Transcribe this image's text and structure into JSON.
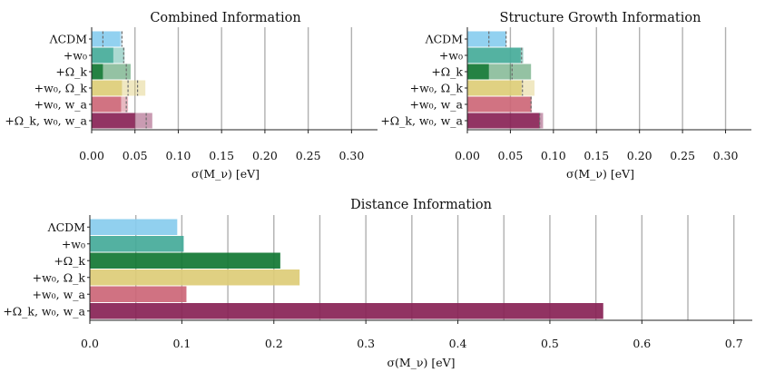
{
  "colors": {
    "blue": "#88CCEE",
    "teal": "#44AA99",
    "green": "#117733",
    "sand": "#DDCC77",
    "rose": "#CC6677",
    "wine": "#882255",
    "grid": "#b0b0b0"
  },
  "chart_data": [
    {
      "type": "bar",
      "orientation": "horizontal",
      "title": "Combined Information",
      "xlabel": "σ(M_ν) [eV]",
      "xlim": [
        0,
        0.33
      ],
      "xticks": [
        "0.00",
        "0.05",
        "0.10",
        "0.15",
        "0.20",
        "0.25",
        "0.30"
      ],
      "categories": [
        "ΛCDM",
        "+w₀",
        "+Ω_k",
        "+w₀, Ω_k",
        "+w₀, w_a",
        "+Ω_k, w₀, w_a"
      ],
      "bar_colors": [
        "#88CCEE",
        "#44AA99",
        "#117733",
        "#DDCC77",
        "#CC6677",
        "#882255"
      ],
      "series": [
        {
          "name": "",
          "style": "solid",
          "values": [
            0.033,
            0.025,
            0.013,
            0.035,
            0.034,
            0.05
          ]
        },
        {
          "name": "",
          "style": "faded",
          "values": [
            0.035,
            0.038,
            0.045,
            0.062,
            0.042,
            0.07
          ]
        },
        {
          "name": "",
          "style": "dashed-marker",
          "values": [
            0.035,
            0.037,
            0.04,
            0.053,
            0.04,
            0.063
          ]
        }
      ],
      "extra_markers": [
        {
          "category": "ΛCDM",
          "value": 0.013
        },
        {
          "category": "+w₀, Ω_k",
          "value": 0.042
        }
      ],
      "grid": "vertical",
      "legend": "none"
    },
    {
      "type": "bar",
      "orientation": "horizontal",
      "title": "Structure Growth Information",
      "xlabel": "σ(M_ν) [eV]",
      "xlim": [
        0,
        0.33
      ],
      "xticks": [
        "0.00",
        "0.05",
        "0.10",
        "0.15",
        "0.20",
        "0.25",
        "0.30"
      ],
      "categories": [
        "ΛCDM",
        "+w₀",
        "+Ω_k",
        "+w₀, Ω_k",
        "+w₀, w_a",
        "+Ω_k, w₀, w_a"
      ],
      "bar_colors": [
        "#88CCEE",
        "#44AA99",
        "#117733",
        "#DDCC77",
        "#CC6677",
        "#882255"
      ],
      "series": [
        {
          "name": "",
          "style": "solid",
          "values": [
            0.045,
            0.062,
            0.025,
            0.063,
            0.074,
            0.084
          ]
        },
        {
          "name": "",
          "style": "faded",
          "values": [
            0.045,
            0.065,
            0.074,
            0.078,
            0.075,
            0.088
          ]
        },
        {
          "name": "",
          "style": "dashed-marker",
          "values": [
            0.045,
            0.063,
            0.052,
            0.064,
            0.074,
            0.084
          ]
        }
      ],
      "extra_markers": [
        {
          "category": "ΛCDM",
          "value": 0.025
        }
      ],
      "grid": "vertical",
      "legend": "none"
    },
    {
      "type": "bar",
      "orientation": "horizontal",
      "title": "Distance Information",
      "xlabel": "σ(M_ν) [eV]",
      "xlim": [
        0,
        0.72
      ],
      "xticks": [
        "0.0",
        "0.1",
        "0.2",
        "0.3",
        "0.4",
        "0.5",
        "0.6",
        "0.7"
      ],
      "categories": [
        "ΛCDM",
        "+w₀",
        "+Ω_k",
        "+w₀, Ω_k",
        "+w₀, w_a",
        "+Ω_k, w₀, w_a"
      ],
      "bar_colors": [
        "#88CCEE",
        "#44AA99",
        "#117733",
        "#DDCC77",
        "#CC6677",
        "#882255"
      ],
      "series": [
        {
          "name": "",
          "style": "solid",
          "values": [
            0.095,
            0.102,
            0.207,
            0.228,
            0.105,
            0.558
          ]
        }
      ],
      "grid": "vertical-with-minor",
      "legend": "none"
    }
  ]
}
